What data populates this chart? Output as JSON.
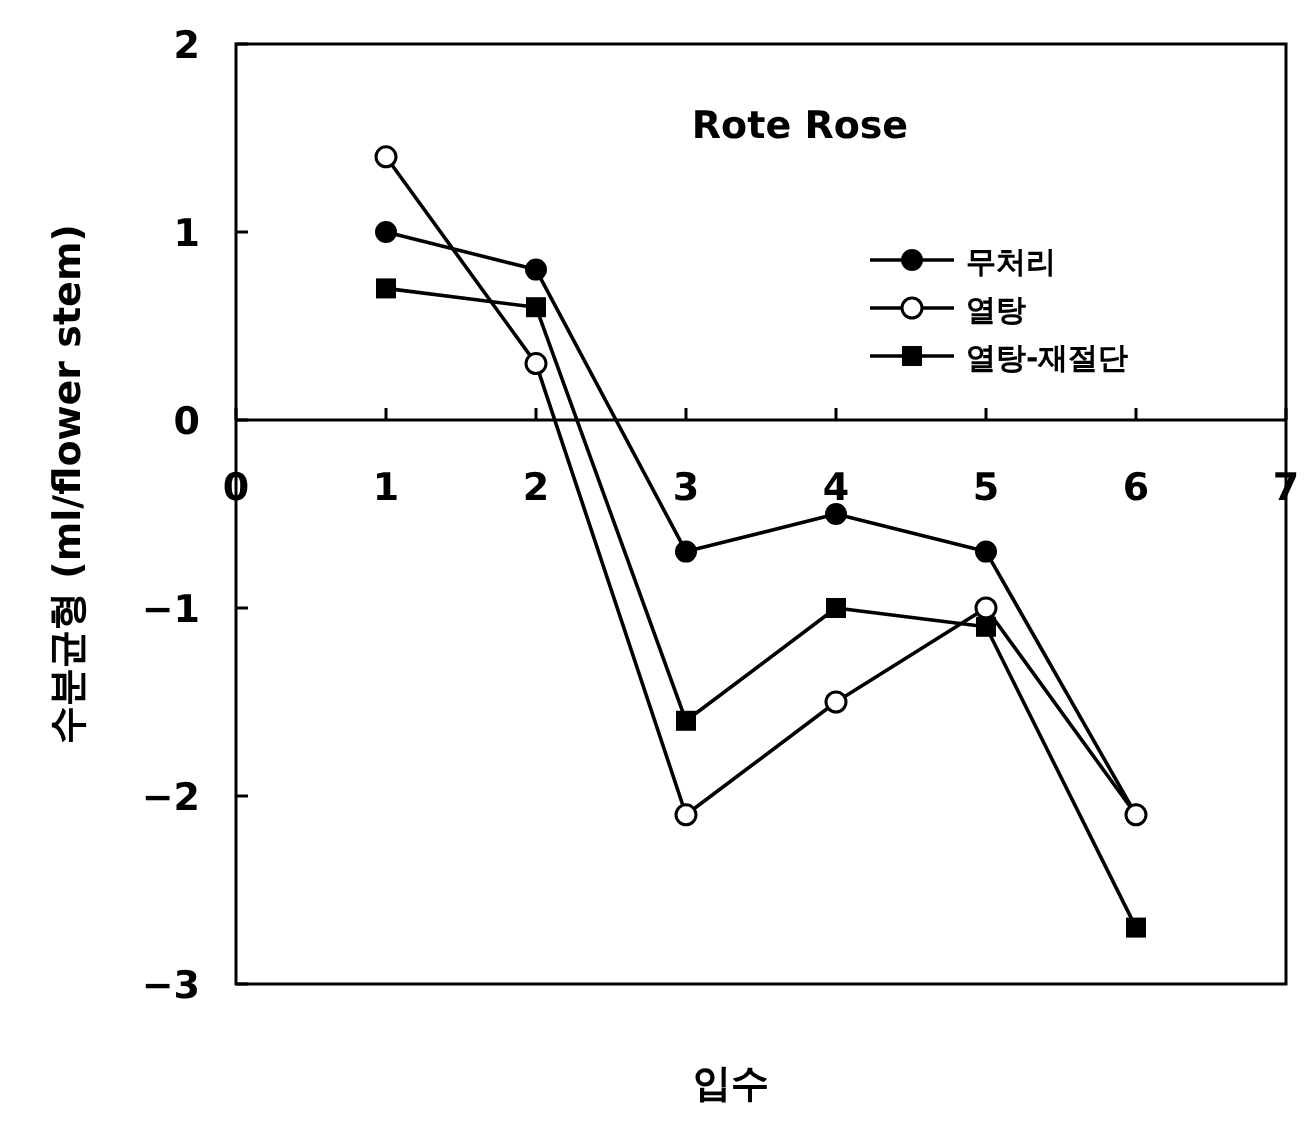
{
  "chart_data": {
    "type": "line",
    "title": "Rote Rose",
    "xlabel": "입수",
    "ylabel": "수분균형 (ml/flower stem)",
    "x": [
      1,
      2,
      3,
      4,
      5,
      6
    ],
    "xlim": [
      0,
      7
    ],
    "xticks": [
      0,
      1,
      2,
      3,
      4,
      5,
      6,
      7
    ],
    "ylim": [
      -3,
      2
    ],
    "yticks": [
      -3,
      -2,
      -1,
      0,
      1,
      2
    ],
    "legend": "top right",
    "line_style": "solid",
    "series": [
      {
        "name": "무처리",
        "color": "#000000",
        "marker": "circle",
        "values": [
          1.0,
          0.8,
          -0.7,
          -0.5,
          -0.7,
          -2.1
        ]
      },
      {
        "name": "열탕",
        "color": "#000000",
        "marker": "open circle",
        "values": [
          1.4,
          0.3,
          -2.1,
          -1.5,
          -1.0,
          -2.1
        ]
      },
      {
        "name": "열탕-재절단",
        "color": "#000000",
        "marker": "square",
        "values": [
          0.7,
          0.6,
          -1.6,
          -1.0,
          -1.1,
          -2.7
        ]
      }
    ]
  }
}
